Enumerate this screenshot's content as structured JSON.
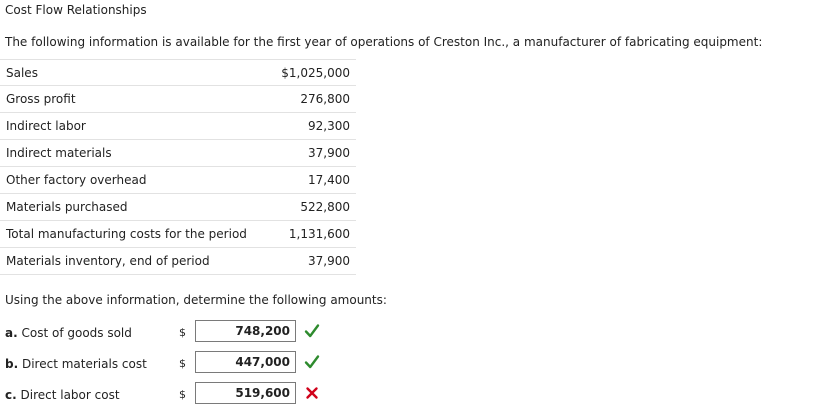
{
  "page": {
    "title": "Cost Flow Relationships",
    "intro": "The following information is available for the first year of operations of Creston Inc., a manufacturer of fabricating equipment:",
    "question": "Using the above information, determine the following amounts:"
  },
  "info_rows": [
    {
      "label": "Sales",
      "value": "$1,025,000"
    },
    {
      "label": "Gross profit",
      "value": "276,800"
    },
    {
      "label": "Indirect labor",
      "value": "92,300"
    },
    {
      "label": "Indirect materials",
      "value": "37,900"
    },
    {
      "label": "Other factory overhead",
      "value": "17,400"
    },
    {
      "label": "Materials purchased",
      "value": "522,800"
    },
    {
      "label": "Total manufacturing costs for the period",
      "value": "1,131,600"
    },
    {
      "label": "Materials inventory, end of period",
      "value": "37,900"
    }
  ],
  "answers": [
    {
      "letter": "a.",
      "label": "Cost of goods sold",
      "currency": "$",
      "value": "748,200",
      "status": "correct",
      "status_icon": "check-icon",
      "status_color": "#2e8b2e"
    },
    {
      "letter": "b.",
      "label": "Direct materials cost",
      "currency": "$",
      "value": "447,000",
      "status": "correct",
      "status_icon": "check-icon",
      "status_color": "#2e8b2e"
    },
    {
      "letter": "c.",
      "label": "Direct labor cost",
      "currency": "$",
      "value": "519,600",
      "status": "incorrect",
      "status_icon": "x-icon",
      "status_color": "#d0021b"
    }
  ]
}
